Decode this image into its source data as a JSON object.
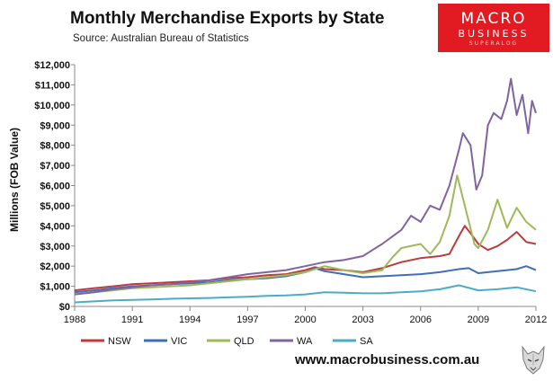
{
  "header": {
    "title": "Monthly Merchandise Exports by State",
    "subtitle": "Source:  Australian Bureau of Statistics"
  },
  "logo": {
    "line1": "MACRO",
    "line2": "BUSINESS",
    "line3": "SUPERALOG",
    "color": "#e21b23"
  },
  "footer": {
    "url": "www.macrobusiness.com.au",
    "icon": "wolf-head-icon"
  },
  "chart_data": {
    "type": "line",
    "title": "Monthly Merchandise Exports by State",
    "xlabel": "",
    "ylabel": "Millions (FOB Value)",
    "xlim": [
      1988,
      2012
    ],
    "ylim": [
      0,
      12000
    ],
    "x_ticks": [
      1988,
      1991,
      1994,
      1997,
      2000,
      2003,
      2006,
      2009,
      2012
    ],
    "x_tick_labels": [
      "1988",
      "1991",
      "1994",
      "1997",
      "2000",
      "2003",
      "2006",
      "2009",
      "2012"
    ],
    "y_ticks": [
      0,
      1000,
      2000,
      3000,
      4000,
      5000,
      6000,
      7000,
      8000,
      9000,
      10000,
      11000,
      12000
    ],
    "y_tick_labels": [
      "$0",
      "$1,000",
      "$2,000",
      "$3,000",
      "$4,000",
      "$5,000",
      "$6,000",
      "$7,000",
      "$8,000",
      "$9,000",
      "$10,000",
      "$11,000",
      "$12,000"
    ],
    "grid": false,
    "legend_position": "bottom",
    "series": [
      {
        "name": "NSW",
        "color": "#c0393b",
        "points": [
          [
            1988,
            800
          ],
          [
            1989,
            900
          ],
          [
            1990,
            1000
          ],
          [
            1991,
            1100
          ],
          [
            1992,
            1150
          ],
          [
            1993,
            1200
          ],
          [
            1994,
            1250
          ],
          [
            1995,
            1300
          ],
          [
            1996,
            1400
          ],
          [
            1997,
            1450
          ],
          [
            1998,
            1550
          ],
          [
            1999,
            1600
          ],
          [
            2000,
            1800
          ],
          [
            2000.5,
            1950
          ],
          [
            2001,
            1850
          ],
          [
            2002,
            1800
          ],
          [
            2003,
            1700
          ],
          [
            2004,
            1900
          ],
          [
            2005,
            2200
          ],
          [
            2006,
            2400
          ],
          [
            2007,
            2500
          ],
          [
            2007.5,
            2600
          ],
          [
            2008,
            3500
          ],
          [
            2008.3,
            4000
          ],
          [
            2008.7,
            3500
          ],
          [
            2009,
            3100
          ],
          [
            2009.5,
            2800
          ],
          [
            2010,
            3000
          ],
          [
            2010.5,
            3300
          ],
          [
            2011,
            3700
          ],
          [
            2011.5,
            3200
          ],
          [
            2012,
            3100
          ]
        ]
      },
      {
        "name": "VIC",
        "color": "#3f6fb5",
        "points": [
          [
            1988,
            700
          ],
          [
            1989,
            800
          ],
          [
            1990,
            900
          ],
          [
            1991,
            1000
          ],
          [
            1992,
            1050
          ],
          [
            1993,
            1100
          ],
          [
            1994,
            1150
          ],
          [
            1995,
            1200
          ],
          [
            1996,
            1300
          ],
          [
            1997,
            1350
          ],
          [
            1998,
            1400
          ],
          [
            1999,
            1500
          ],
          [
            2000,
            1700
          ],
          [
            2000.5,
            1900
          ],
          [
            2001,
            1750
          ],
          [
            2002,
            1600
          ],
          [
            2003,
            1450
          ],
          [
            2004,
            1500
          ],
          [
            2005,
            1550
          ],
          [
            2006,
            1600
          ],
          [
            2007,
            1700
          ],
          [
            2008,
            1850
          ],
          [
            2008.5,
            1900
          ],
          [
            2009,
            1650
          ],
          [
            2010,
            1750
          ],
          [
            2011,
            1850
          ],
          [
            2011.5,
            2000
          ],
          [
            2012,
            1800
          ]
        ]
      },
      {
        "name": "QLD",
        "color": "#9bbb59",
        "points": [
          [
            1988,
            600
          ],
          [
            1989,
            700
          ],
          [
            1990,
            800
          ],
          [
            1991,
            900
          ],
          [
            1992,
            950
          ],
          [
            1993,
            1000
          ],
          [
            1994,
            1050
          ],
          [
            1995,
            1150
          ],
          [
            1996,
            1250
          ],
          [
            1997,
            1350
          ],
          [
            1998,
            1450
          ],
          [
            1999,
            1550
          ],
          [
            2000,
            1700
          ],
          [
            2001,
            2000
          ],
          [
            2002,
            1800
          ],
          [
            2003,
            1650
          ],
          [
            2004,
            1800
          ],
          [
            2004.5,
            2400
          ],
          [
            2005,
            2900
          ],
          [
            2006,
            3100
          ],
          [
            2006.5,
            2600
          ],
          [
            2007,
            3200
          ],
          [
            2007.5,
            4500
          ],
          [
            2007.9,
            6500
          ],
          [
            2008.3,
            5000
          ],
          [
            2008.8,
            3100
          ],
          [
            2009,
            2900
          ],
          [
            2009.5,
            3800
          ],
          [
            2010,
            5300
          ],
          [
            2010.5,
            3900
          ],
          [
            2011,
            4900
          ],
          [
            2011.5,
            4200
          ],
          [
            2012,
            3800
          ]
        ]
      },
      {
        "name": "WA",
        "color": "#8064a2",
        "points": [
          [
            1988,
            600
          ],
          [
            1989,
            700
          ],
          [
            1990,
            850
          ],
          [
            1991,
            950
          ],
          [
            1992,
            1050
          ],
          [
            1993,
            1100
          ],
          [
            1994,
            1200
          ],
          [
            1995,
            1300
          ],
          [
            1996,
            1450
          ],
          [
            1997,
            1600
          ],
          [
            1998,
            1700
          ],
          [
            1999,
            1800
          ],
          [
            2000,
            2000
          ],
          [
            2001,
            2200
          ],
          [
            2002,
            2300
          ],
          [
            2003,
            2500
          ],
          [
            2003.5,
            2800
          ],
          [
            2004,
            3100
          ],
          [
            2005,
            3800
          ],
          [
            2005.5,
            4500
          ],
          [
            2006,
            4200
          ],
          [
            2006.5,
            5000
          ],
          [
            2007,
            4800
          ],
          [
            2007.5,
            6000
          ],
          [
            2008,
            7800
          ],
          [
            2008.2,
            8600
          ],
          [
            2008.6,
            8000
          ],
          [
            2008.9,
            5800
          ],
          [
            2009.2,
            6500
          ],
          [
            2009.5,
            9000
          ],
          [
            2009.8,
            9600
          ],
          [
            2010.2,
            9300
          ],
          [
            2010.5,
            10200
          ],
          [
            2010.7,
            11300
          ],
          [
            2011,
            9500
          ],
          [
            2011.3,
            10500
          ],
          [
            2011.6,
            8600
          ],
          [
            2011.8,
            10200
          ],
          [
            2012,
            9600
          ]
        ]
      },
      {
        "name": "SA",
        "color": "#4bacc6",
        "points": [
          [
            1988,
            200
          ],
          [
            1989,
            250
          ],
          [
            1990,
            300
          ],
          [
            1991,
            320
          ],
          [
            1992,
            350
          ],
          [
            1993,
            380
          ],
          [
            1994,
            400
          ],
          [
            1995,
            420
          ],
          [
            1996,
            450
          ],
          [
            1997,
            480
          ],
          [
            1998,
            520
          ],
          [
            1999,
            550
          ],
          [
            2000,
            600
          ],
          [
            2001,
            700
          ],
          [
            2002,
            680
          ],
          [
            2003,
            650
          ],
          [
            2004,
            650
          ],
          [
            2005,
            700
          ],
          [
            2006,
            750
          ],
          [
            2007,
            850
          ],
          [
            2008,
            1050
          ],
          [
            2009,
            800
          ],
          [
            2010,
            850
          ],
          [
            2011,
            950
          ],
          [
            2012,
            750
          ]
        ]
      }
    ]
  }
}
